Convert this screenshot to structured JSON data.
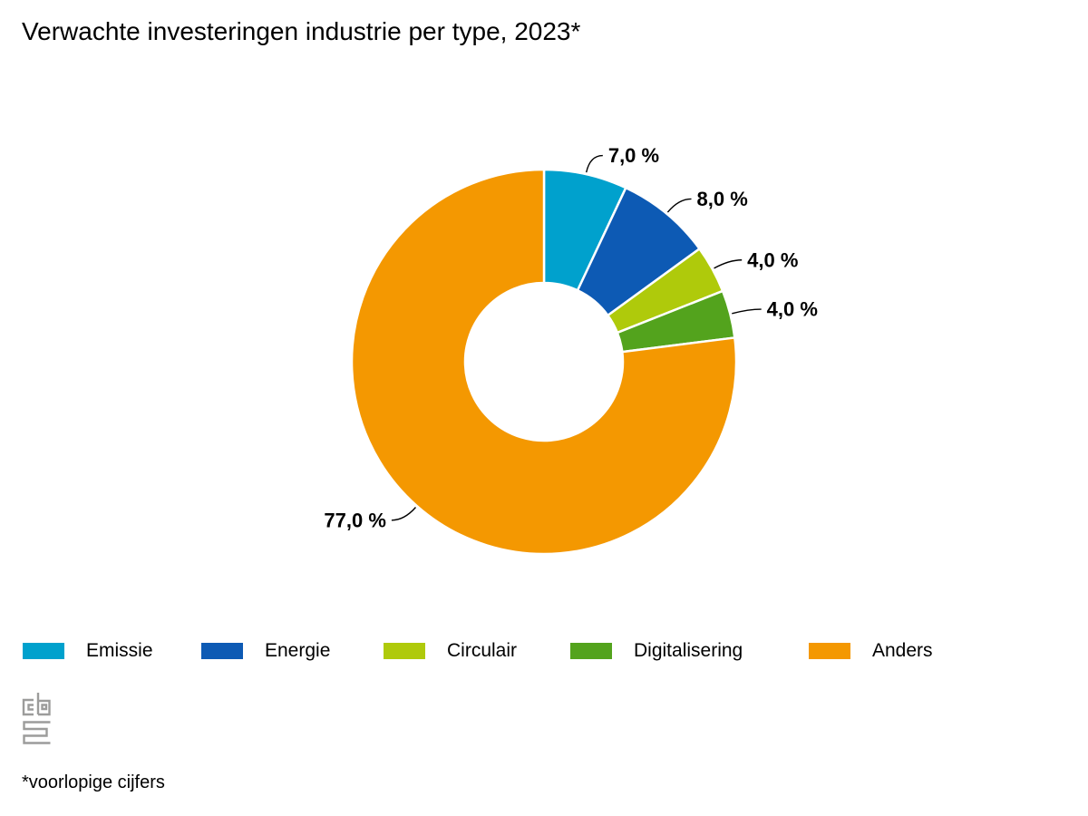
{
  "title": "Verwachte investeringen industrie per type, 2023*",
  "footnote": "*voorlopige cijfers",
  "logo_name": "cbs-logo",
  "colors": {
    "emissie": "#00A1CD",
    "energie": "#0D5AB4",
    "circulair": "#AFCA0B",
    "digitalisering": "#53A31D",
    "anders": "#F49801",
    "logo_gray": "#9C9C9B",
    "text": "#000000",
    "background": "#FFFFFF"
  },
  "legend": {
    "position": "bottom",
    "items": [
      {
        "label": "Emissie",
        "color": "#00A1CD"
      },
      {
        "label": "Energie",
        "color": "#0D5AB4"
      },
      {
        "label": "Circulair",
        "color": "#AFCA0B"
      },
      {
        "label": "Digitalisering",
        "color": "#53A31D"
      },
      {
        "label": "Anders",
        "color": "#F49801"
      }
    ]
  },
  "chart_data": {
    "type": "pie",
    "subtype": "donut",
    "title": "Verwachte investeringen industrie per type, 2023*",
    "unit": "%",
    "categories": [
      "Emissie",
      "Energie",
      "Circulair",
      "Digitalisering",
      "Anders"
    ],
    "values": [
      7.0,
      8.0,
      4.0,
      4.0,
      77.0
    ],
    "value_labels": [
      "7,0 %",
      "8,0 %",
      "4,0 %",
      "4,0 %",
      "77,0 %"
    ],
    "colors": [
      "#00A1CD",
      "#0D5AB4",
      "#AFCA0B",
      "#53A31D",
      "#F49801"
    ],
    "start_angle_deg": 0,
    "direction": "clockwise",
    "legend_position": "bottom",
    "grid": false
  }
}
